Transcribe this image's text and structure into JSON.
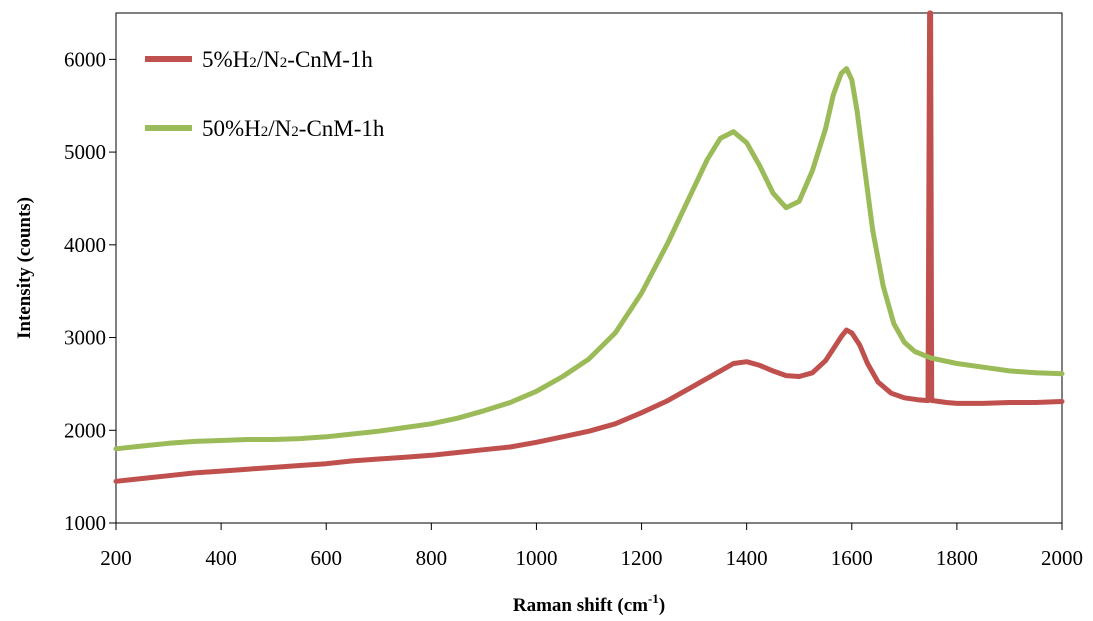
{
  "chart_data": {
    "type": "line",
    "title": "",
    "xlabel": "Raman shift (cm",
    "xlabel_sup": "-1",
    "xlabel_suffix": ")",
    "ylabel": "Intensity (counts)",
    "xlim": [
      200,
      2000
    ],
    "ylim": [
      1000,
      6500
    ],
    "xticks": [
      200,
      400,
      600,
      800,
      1000,
      1200,
      1400,
      1600,
      1800,
      2000
    ],
    "yticks": [
      1000,
      2000,
      3000,
      4000,
      5000,
      6000
    ],
    "grid": false,
    "legend_position": "top-left",
    "series": [
      {
        "name_parts": [
          "5%H",
          "2",
          "/N",
          "2",
          "-CnM-1h"
        ],
        "color": "#c0504d",
        "x": [
          200,
          250,
          300,
          350,
          400,
          450,
          500,
          550,
          600,
          650,
          700,
          750,
          800,
          850,
          900,
          950,
          1000,
          1050,
          1100,
          1150,
          1200,
          1250,
          1300,
          1350,
          1375,
          1400,
          1425,
          1450,
          1475,
          1500,
          1525,
          1550,
          1565,
          1580,
          1590,
          1600,
          1615,
          1630,
          1650,
          1675,
          1700,
          1725,
          1745,
          1748,
          1750,
          1752,
          1755,
          1780,
          1800,
          1850,
          1900,
          1950,
          2000
        ],
        "y": [
          1450,
          1480,
          1510,
          1540,
          1560,
          1580,
          1600,
          1620,
          1640,
          1670,
          1690,
          1710,
          1730,
          1760,
          1790,
          1820,
          1870,
          1930,
          1990,
          2070,
          2190,
          2320,
          2480,
          2640,
          2720,
          2740,
          2700,
          2640,
          2590,
          2580,
          2620,
          2750,
          2880,
          3010,
          3080,
          3050,
          2920,
          2720,
          2520,
          2400,
          2350,
          2330,
          2320,
          6500,
          6500,
          2320,
          2320,
          2300,
          2290,
          2290,
          2300,
          2300,
          2310
        ]
      },
      {
        "name_parts": [
          "50%H",
          "2",
          "/N",
          "2",
          "-CnM-1h"
        ],
        "color": "#9bbb59",
        "x": [
          200,
          250,
          300,
          350,
          400,
          450,
          500,
          550,
          600,
          650,
          700,
          750,
          800,
          850,
          900,
          950,
          1000,
          1050,
          1100,
          1150,
          1200,
          1250,
          1300,
          1325,
          1350,
          1375,
          1400,
          1425,
          1450,
          1475,
          1500,
          1525,
          1550,
          1565,
          1580,
          1590,
          1600,
          1610,
          1625,
          1640,
          1660,
          1680,
          1700,
          1720,
          1750,
          1800,
          1850,
          1900,
          1950,
          2000
        ],
        "y": [
          1800,
          1830,
          1860,
          1880,
          1890,
          1900,
          1900,
          1910,
          1930,
          1960,
          1990,
          2030,
          2070,
          2130,
          2210,
          2300,
          2420,
          2580,
          2770,
          3050,
          3480,
          4020,
          4620,
          4920,
          5150,
          5220,
          5100,
          4850,
          4560,
          4400,
          4470,
          4800,
          5250,
          5620,
          5850,
          5900,
          5780,
          5450,
          4800,
          4150,
          3550,
          3150,
          2950,
          2850,
          2780,
          2720,
          2680,
          2640,
          2620,
          2610
        ]
      }
    ]
  }
}
